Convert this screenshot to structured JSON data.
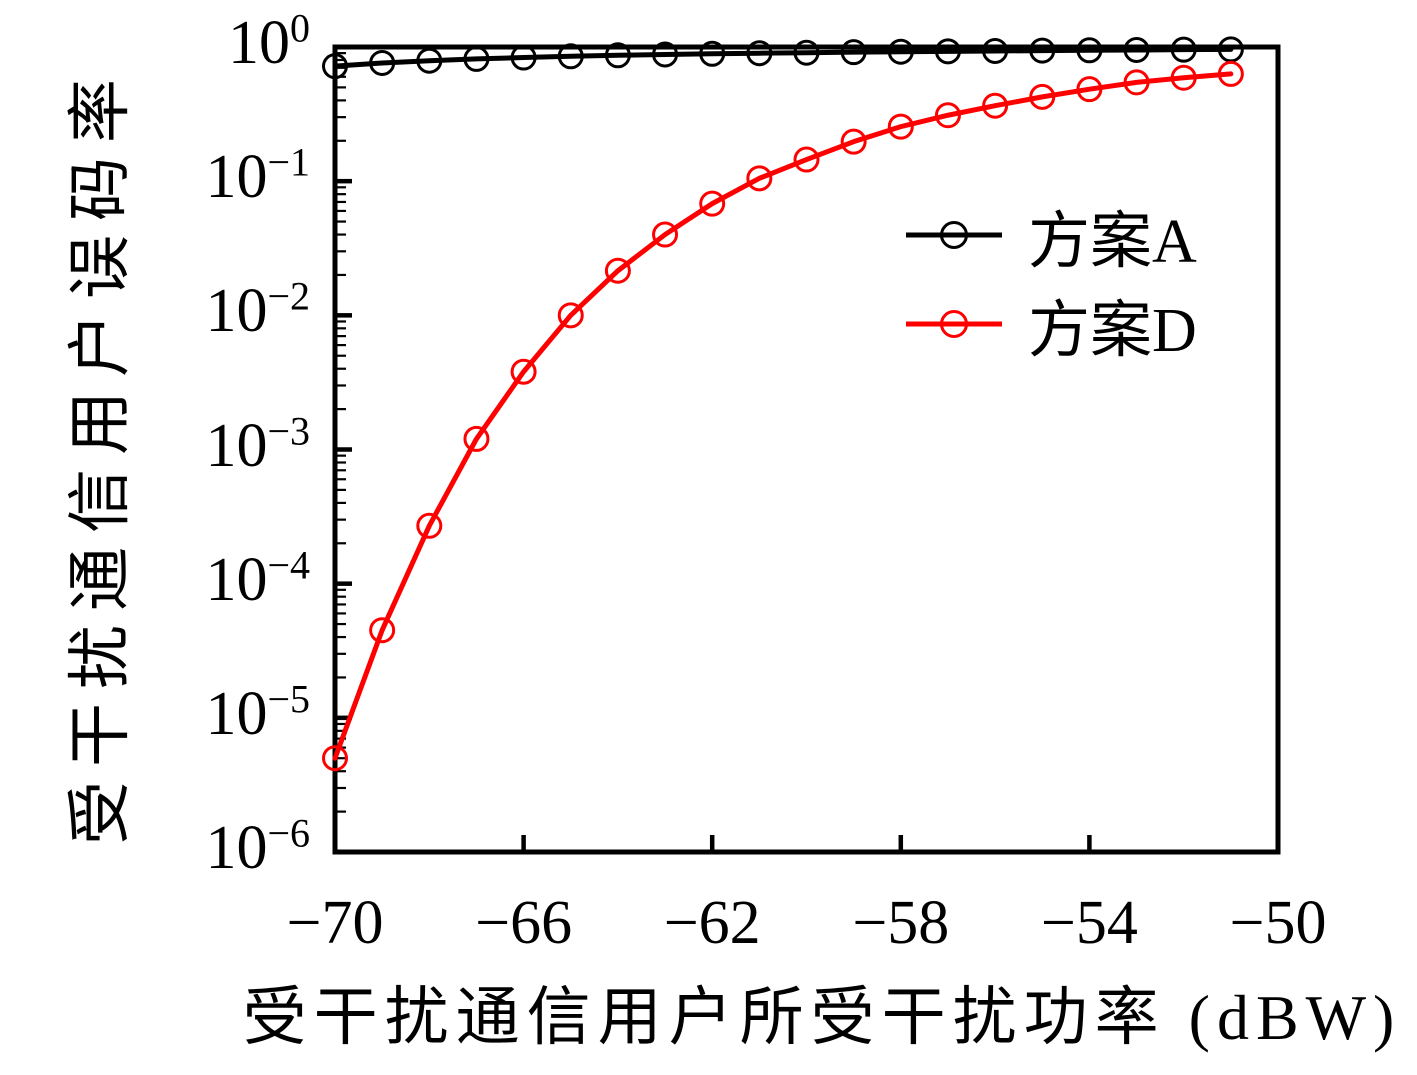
{
  "chart_data": {
    "type": "line",
    "title": "",
    "xlabel": "受干扰通信用户所受干扰功率 (dBW)",
    "ylabel": "受干扰通信用户误码率",
    "x_scale": "linear",
    "y_scale": "log",
    "xlim": [
      -70,
      -50
    ],
    "ylim": [
      1e-06,
      1
    ],
    "grid": false,
    "legend_position": "upper-right-inside-no-frame",
    "xticks": [
      {
        "value": -70,
        "label": "−70"
      },
      {
        "value": -66,
        "label": "−66"
      },
      {
        "value": -62,
        "label": "−62"
      },
      {
        "value": -58,
        "label": "−58"
      },
      {
        "value": -54,
        "label": "−54"
      },
      {
        "value": -50,
        "label": "−50"
      }
    ],
    "yticks": [
      {
        "value": 1,
        "label": "10^0"
      },
      {
        "value": 0.1,
        "label": "10^−1"
      },
      {
        "value": 0.01,
        "label": "10^−2"
      },
      {
        "value": 0.001,
        "label": "10^−3"
      },
      {
        "value": 0.0001,
        "label": "10^−4"
      },
      {
        "value": 1e-05,
        "label": "10^−5"
      },
      {
        "value": 1e-06,
        "label": "10^−6"
      }
    ],
    "x": [
      -70,
      -69,
      -68,
      -67,
      -66,
      -65,
      -64,
      -63,
      -62,
      -61,
      -60,
      -59,
      -58,
      -57,
      -56,
      -55,
      -54,
      -53,
      -52,
      -51
    ],
    "series": [
      {
        "name": "方案A",
        "color": "#000000",
        "marker": "open-circle",
        "values": [
          0.72,
          0.76,
          0.79,
          0.815,
          0.835,
          0.853,
          0.868,
          0.88,
          0.89,
          0.899,
          0.907,
          0.915,
          0.922,
          0.928,
          0.934,
          0.94,
          0.945,
          0.95,
          0.955,
          0.96
        ]
      },
      {
        "name": "方案D",
        "color": "#ff0000",
        "marker": "open-circle",
        "values": [
          5e-06,
          4.5e-05,
          0.00027,
          0.0012,
          0.0038,
          0.01,
          0.0215,
          0.04,
          0.068,
          0.105,
          0.145,
          0.197,
          0.255,
          0.31,
          0.365,
          0.425,
          0.485,
          0.545,
          0.59,
          0.63
        ]
      }
    ]
  }
}
